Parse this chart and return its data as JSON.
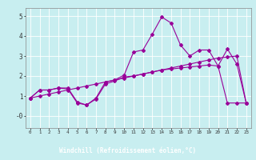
{
  "xlabel": "Windchill (Refroidissement éolien,°C)",
  "bg_color": "#c8eef0",
  "line_color": "#990099",
  "xlabel_bg": "#7b3f7b",
  "xlabel_fg": "#ffffff",
  "grid_color": "#ffffff",
  "x_main": [
    0,
    1,
    2,
    3,
    4,
    5,
    6,
    7,
    8,
    9,
    10,
    11,
    12,
    13,
    14,
    15,
    16,
    17,
    18,
    19,
    20,
    21,
    22,
    23
  ],
  "y_main": [
    0.9,
    1.3,
    1.3,
    1.4,
    1.4,
    0.7,
    0.55,
    0.9,
    1.7,
    1.8,
    2.05,
    3.2,
    3.3,
    4.1,
    4.95,
    4.65,
    3.55,
    3.0,
    3.3,
    3.3,
    2.5,
    3.35,
    2.6,
    0.65
  ],
  "y_lower": [
    0.9,
    1.3,
    1.3,
    1.4,
    1.35,
    0.65,
    0.55,
    0.85,
    1.6,
    1.75,
    1.95,
    2.0,
    2.1,
    2.2,
    2.3,
    2.35,
    2.4,
    2.45,
    2.5,
    2.55,
    2.5,
    0.65,
    0.65,
    0.65
  ],
  "y_upper": [
    0.9,
    1.0,
    1.1,
    1.2,
    1.3,
    1.4,
    1.5,
    1.6,
    1.7,
    1.8,
    1.9,
    2.0,
    2.1,
    2.2,
    2.3,
    2.4,
    2.5,
    2.6,
    2.7,
    2.8,
    2.9,
    2.95,
    3.0,
    0.65
  ],
  "xlim": [
    -0.5,
    23.5
  ],
  "ylim": [
    -0.6,
    5.4
  ],
  "yticks": [
    0,
    1,
    2,
    3,
    4,
    5
  ],
  "ytick_labels": [
    "-0",
    "1",
    "2",
    "3",
    "4",
    "5"
  ]
}
